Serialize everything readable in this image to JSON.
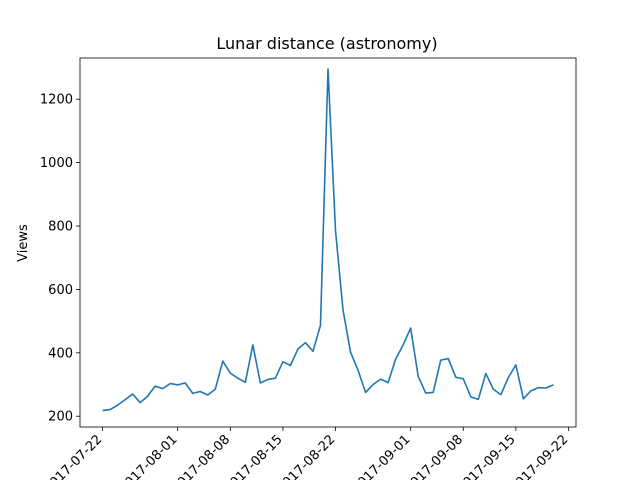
{
  "chart_data": {
    "type": "line",
    "title": "Lunar distance (astronomy)",
    "xlabel": "",
    "ylabel": "Views",
    "x_start": "2017-07-22",
    "x_end": "2017-09-20",
    "xlim": [
      "2017-07-19",
      "2017-09-23"
    ],
    "ylim": [
      166,
      1330
    ],
    "grid": false,
    "x_ticks": [
      {
        "date": "2017-07-22",
        "label": "2017-07-22"
      },
      {
        "date": "2017-08-01",
        "label": "2017-08-01"
      },
      {
        "date": "2017-08-08",
        "label": "2017-08-08"
      },
      {
        "date": "2017-08-15",
        "label": "2017-08-15"
      },
      {
        "date": "2017-08-22",
        "label": "2017-08-22"
      },
      {
        "date": "2017-09-01",
        "label": "2017-09-01"
      },
      {
        "date": "2017-09-08",
        "label": "2017-09-08"
      },
      {
        "date": "2017-09-15",
        "label": "2017-09-15"
      },
      {
        "date": "2017-09-22",
        "label": "2017-09-22"
      }
    ],
    "y_ticks": [
      200,
      400,
      600,
      800,
      1000,
      1200
    ],
    "series": [
      {
        "color": "#1f77b4",
        "values": [
          218,
          221,
          235,
          252,
          270,
          243,
          263,
          295,
          287,
          303,
          299,
          305,
          272,
          278,
          267,
          285,
          374,
          336,
          320,
          307,
          425,
          305,
          316,
          320,
          372,
          360,
          412,
          432,
          405,
          487,
          1295,
          785,
          535,
          402,
          345,
          275,
          300,
          317,
          306,
          380,
          425,
          478,
          326,
          273,
          275,
          377,
          382,
          323,
          318,
          261,
          253,
          335,
          285,
          268,
          322,
          362,
          255,
          280,
          290,
          289,
          299
        ]
      }
    ]
  }
}
